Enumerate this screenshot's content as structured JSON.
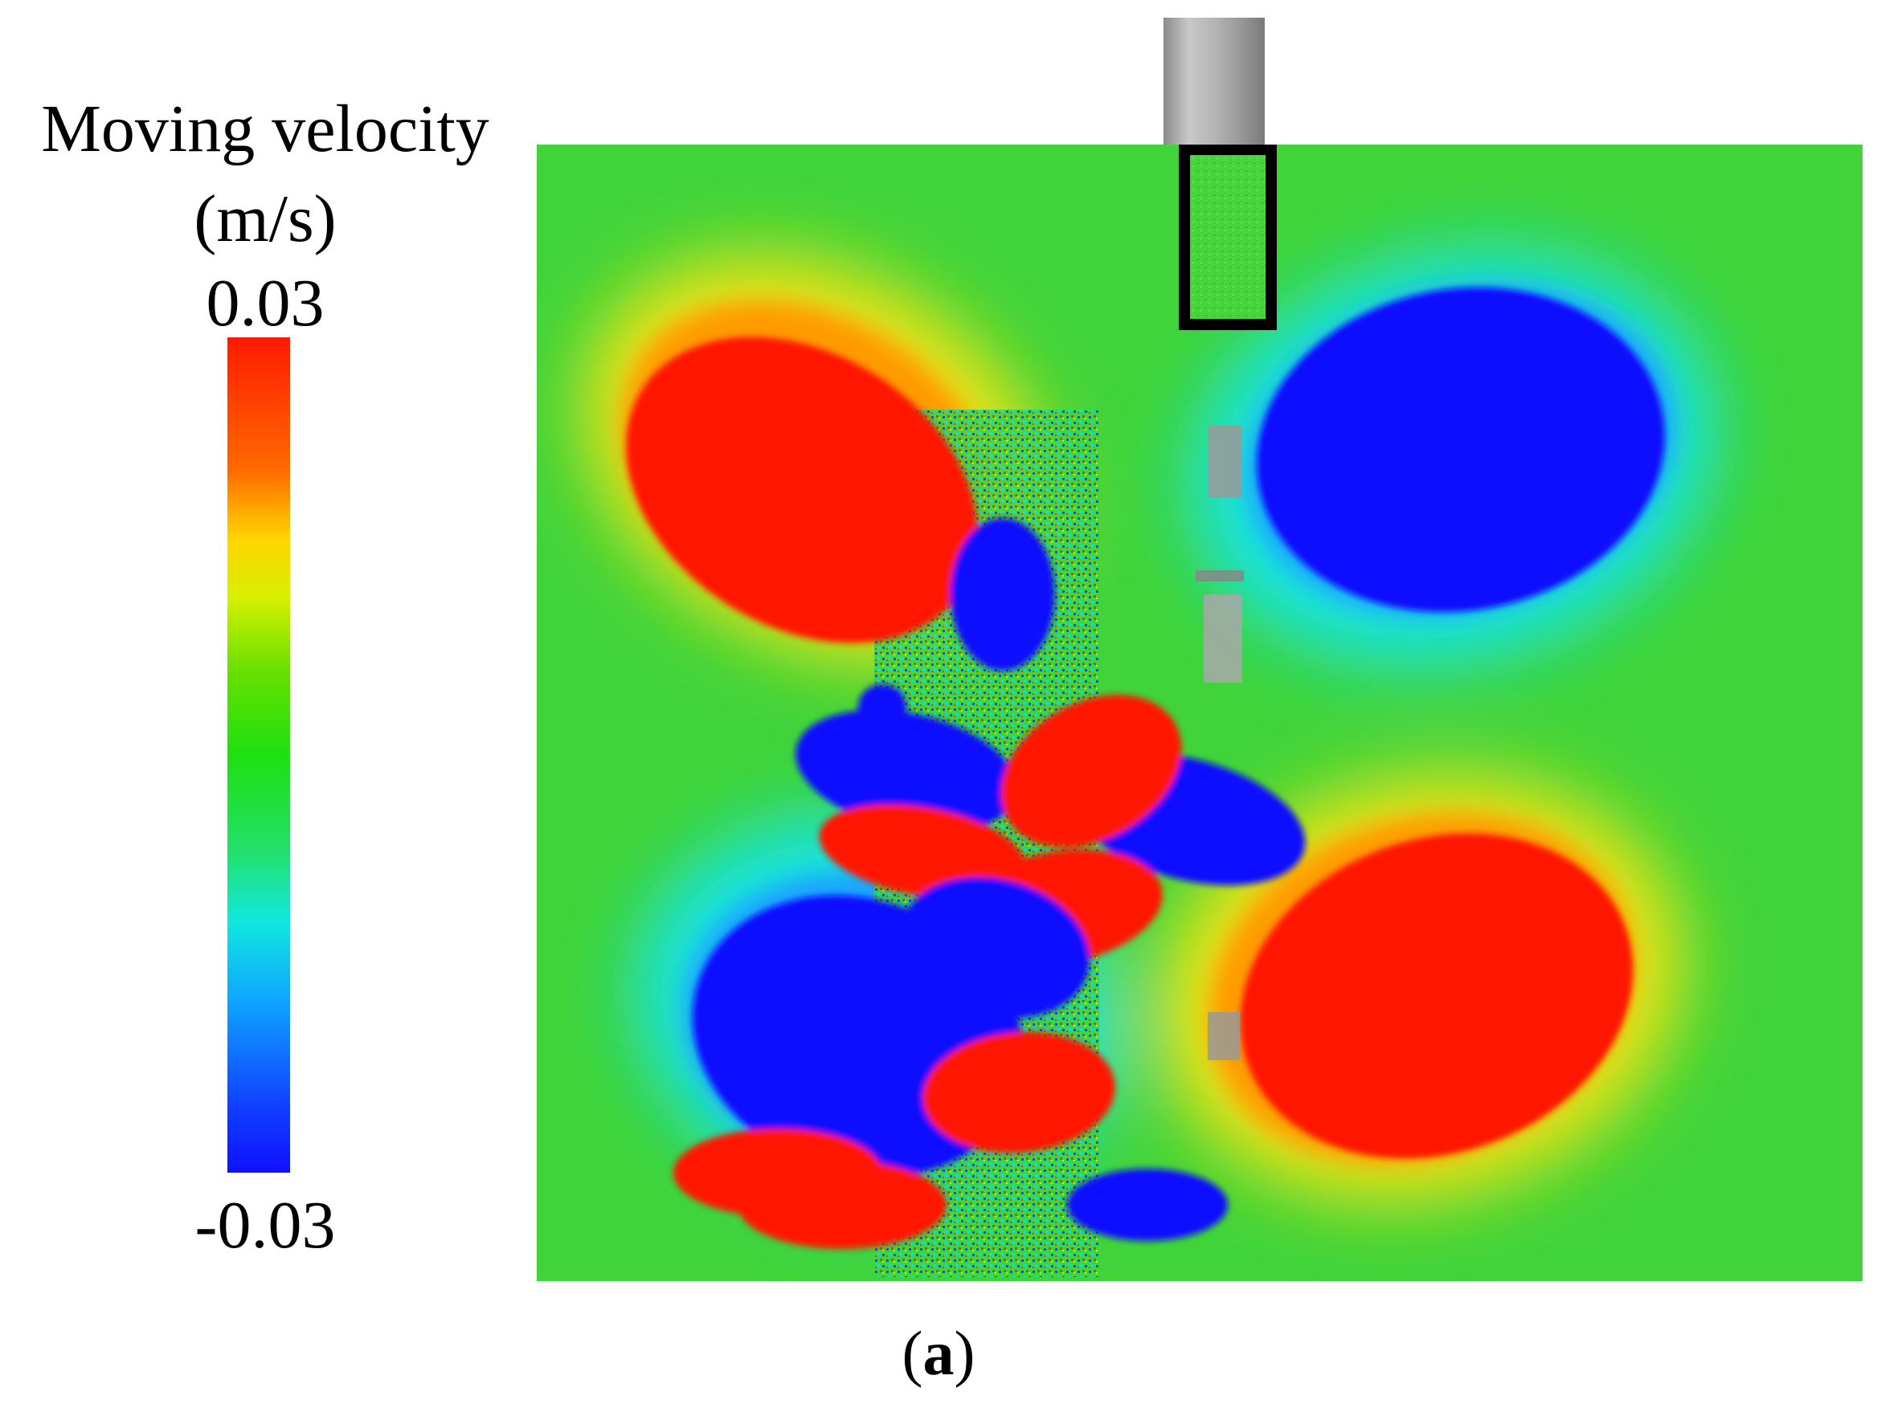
{
  "legend": {
    "title_line1": "Moving velocity",
    "title_line2": "(m/s)",
    "max_label": "0.03",
    "min_label": "-0.03",
    "colormap": [
      "#ff1a00",
      "#ffd400",
      "#1ee010",
      "#10e8e0",
      "#1010ff"
    ]
  },
  "figure": {
    "caption_open": "(",
    "caption_letter": "a",
    "caption_close": ")"
  },
  "colors": {
    "positive": "#ff1500",
    "negative": "#1010ff",
    "neutral": "#3ed83a",
    "outline": "#000000"
  }
}
